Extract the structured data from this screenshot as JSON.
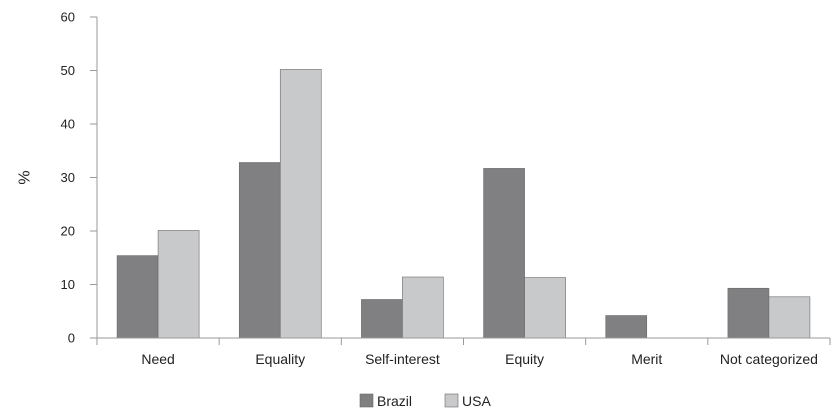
{
  "chart_data": {
    "type": "bar",
    "title": "",
    "xlabel": "",
    "ylabel": "%",
    "ylim": [
      0,
      60
    ],
    "yticks": [
      0,
      10,
      20,
      30,
      40,
      50,
      60
    ],
    "grid": false,
    "legend_position": "bottom-center",
    "categories": [
      "Need",
      "Equality",
      "Self-interest",
      "Equity",
      "Merit",
      "Not categorized"
    ],
    "series": [
      {
        "name": "Brazil",
        "color": "#808083",
        "values": [
          15.4,
          32.8,
          7.2,
          31.7,
          4.2,
          9.3
        ]
      },
      {
        "name": "USA",
        "color": "#c8c9cb",
        "values": [
          20.1,
          50.2,
          11.4,
          11.3,
          0,
          7.7
        ]
      }
    ]
  }
}
